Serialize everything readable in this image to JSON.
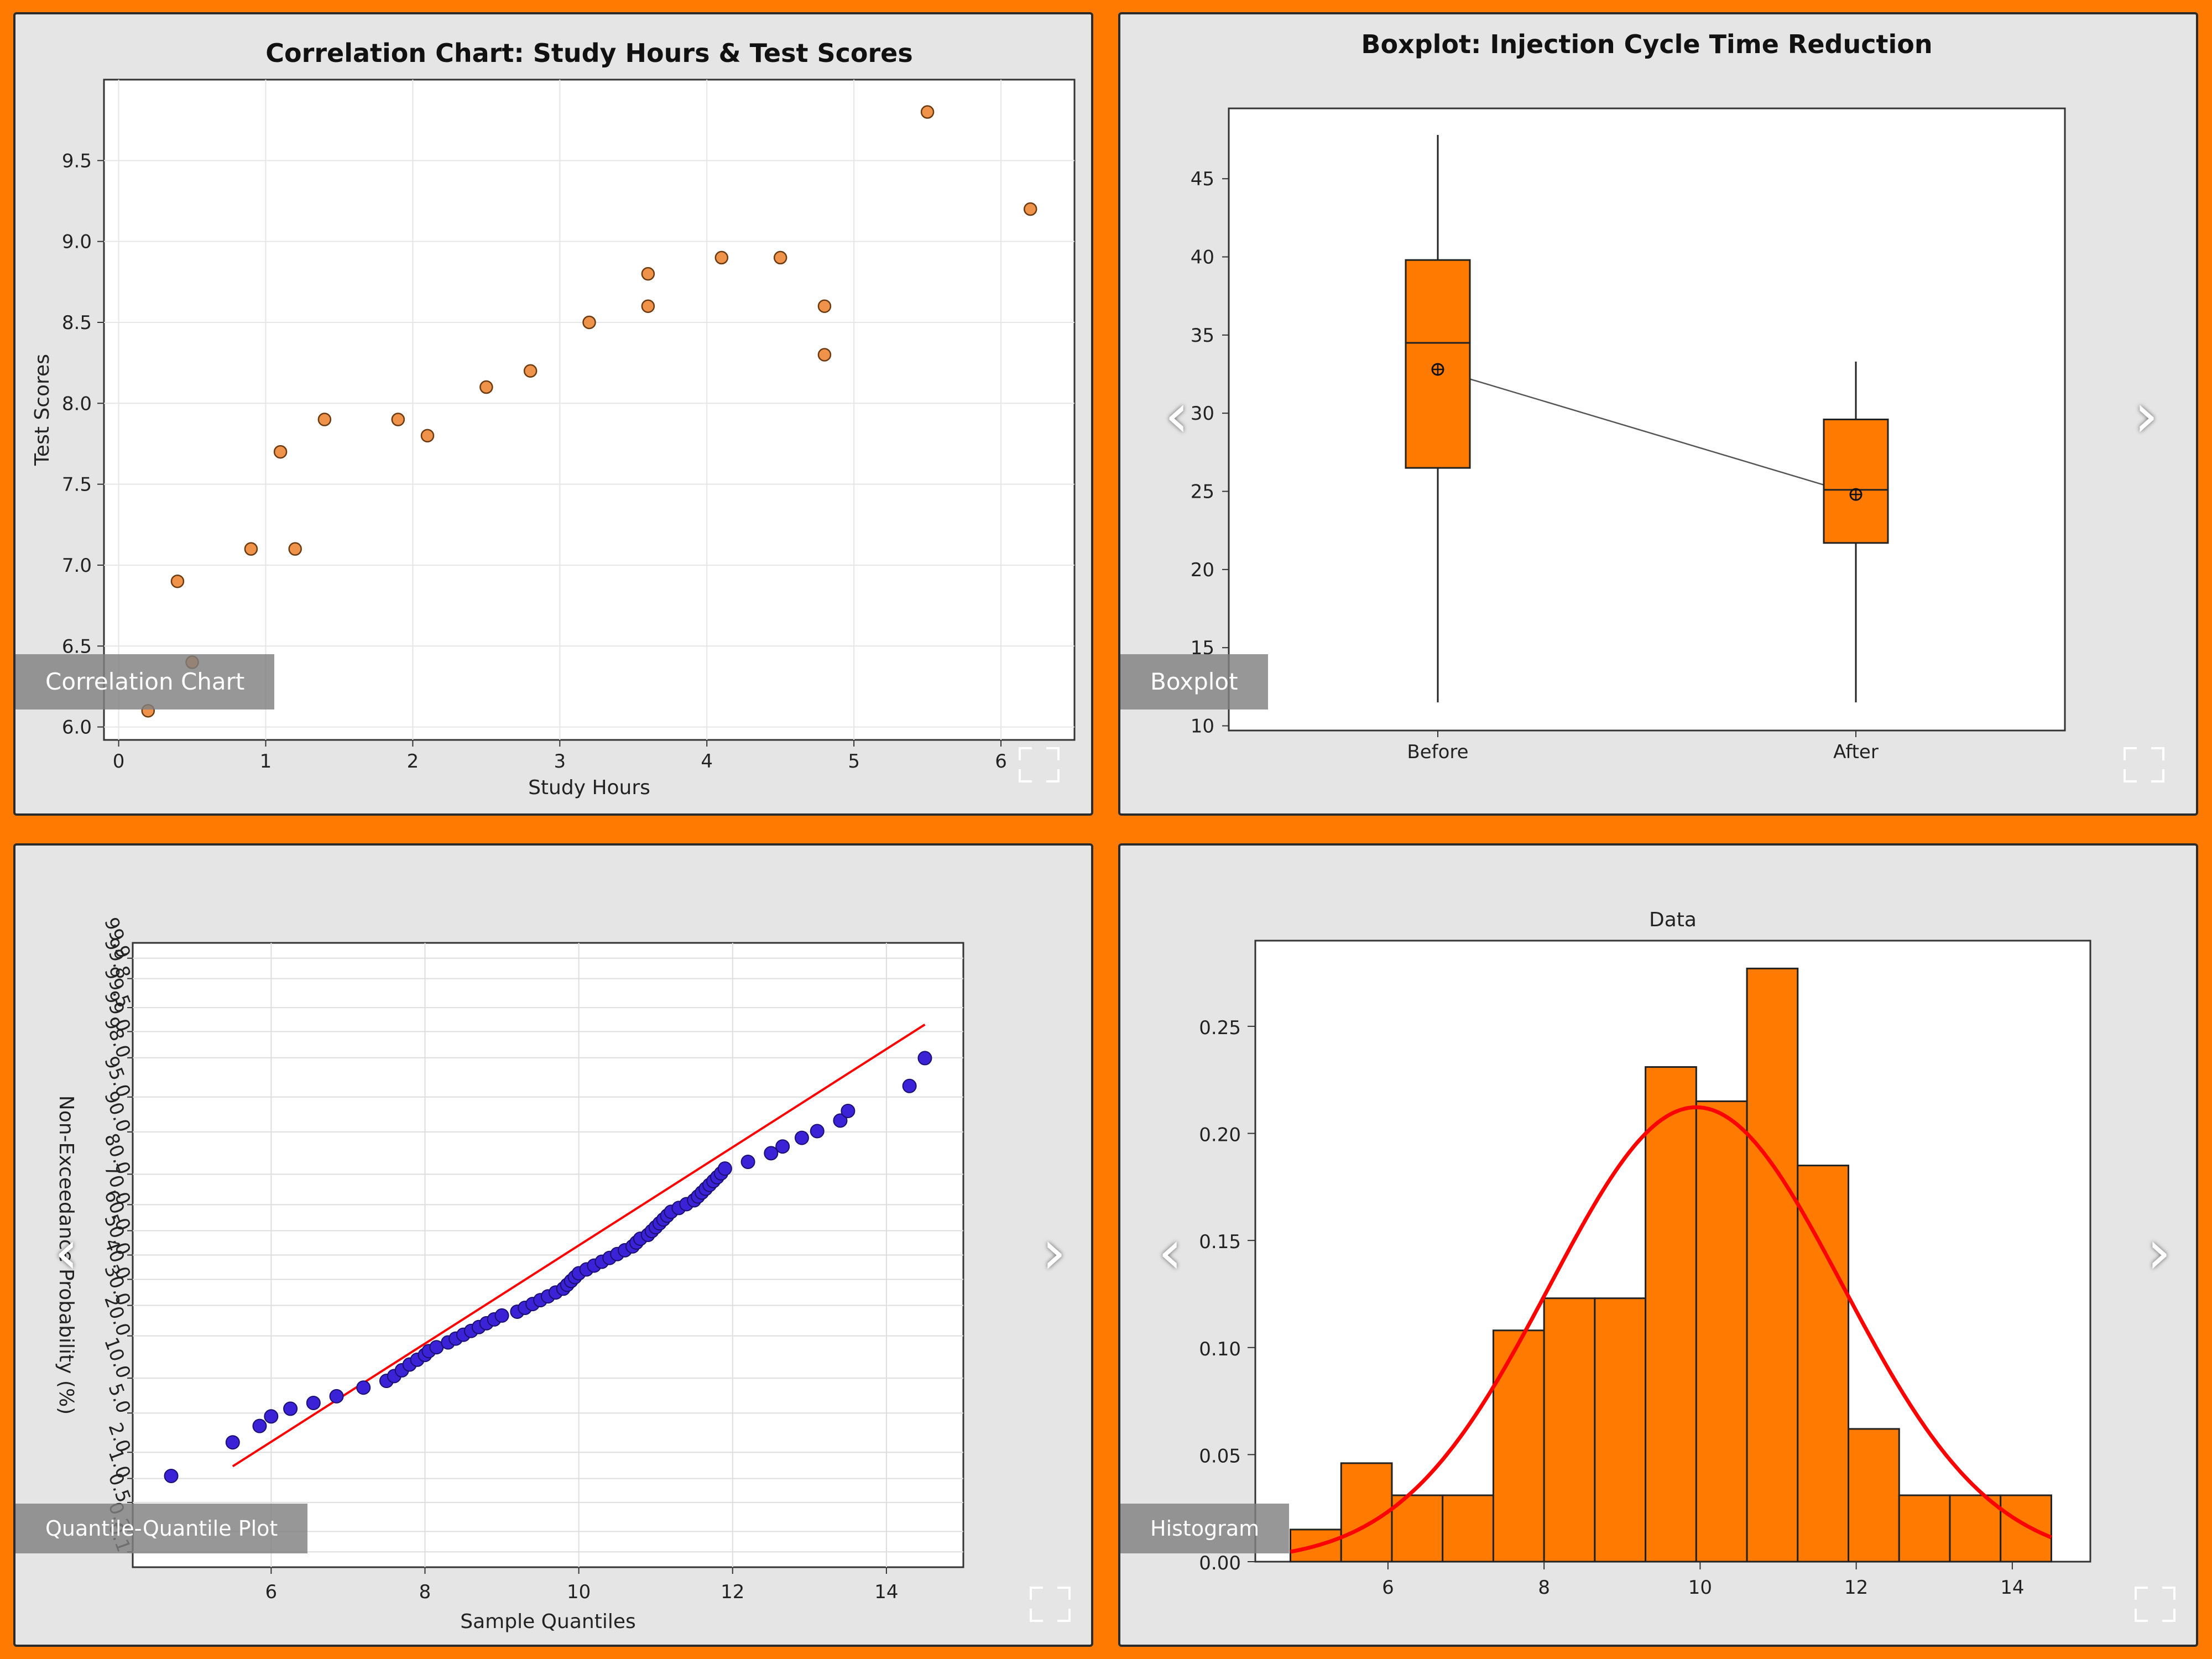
{
  "panels": [
    {
      "caption": "Correlation Chart",
      "chart_data": {
        "type": "scatter",
        "title": "Correlation Chart: Study Hours & Test Scores",
        "xlabel": "Study Hours",
        "ylabel": "Test Scores",
        "xlim": [
          -0.1,
          6.5
        ],
        "ylim": [
          5.92,
          10.0
        ],
        "xticks": [
          0,
          1,
          2,
          3,
          4,
          5,
          6
        ],
        "yticks": [
          6.0,
          6.5,
          7.0,
          7.5,
          8.0,
          8.5,
          9.0,
          9.5
        ],
        "ytick_labels": [
          "6.0",
          "6.5",
          "7.0",
          "7.5",
          "8.0",
          "8.5",
          "9.0",
          "9.5"
        ],
        "grid": true,
        "color": "#F0934A",
        "points": [
          [
            0.2,
            6.1
          ],
          [
            0.4,
            6.9
          ],
          [
            0.5,
            6.4
          ],
          [
            0.9,
            7.1
          ],
          [
            1.1,
            7.7
          ],
          [
            1.2,
            7.1
          ],
          [
            1.4,
            7.9
          ],
          [
            1.9,
            7.9
          ],
          [
            2.1,
            7.8
          ],
          [
            2.5,
            8.1
          ],
          [
            2.8,
            8.2
          ],
          [
            3.2,
            8.5
          ],
          [
            3.6,
            8.8
          ],
          [
            3.6,
            8.6
          ],
          [
            4.1,
            8.9
          ],
          [
            4.5,
            8.9
          ],
          [
            4.8,
            8.6
          ],
          [
            4.8,
            8.3
          ],
          [
            5.5,
            9.8
          ],
          [
            6.2,
            9.2
          ]
        ]
      }
    },
    {
      "caption": "Boxplot",
      "chart_data": {
        "type": "box",
        "title": "Boxplot: Injection Cycle Time Reduction",
        "categories": [
          "Before",
          "After"
        ],
        "ylim": [
          9.7,
          49.5
        ],
        "yticks": [
          10,
          15,
          20,
          25,
          30,
          35,
          40,
          45
        ],
        "color": "#FF7A00",
        "boxes": [
          {
            "min": 11.5,
            "q1": 26.5,
            "median": 34.5,
            "q3": 39.8,
            "max": 47.8,
            "mean": 32.8
          },
          {
            "min": 11.5,
            "q1": 21.7,
            "median": 25.1,
            "q3": 29.6,
            "max": 33.3,
            "mean": 24.8
          }
        ]
      }
    },
    {
      "caption": "Quantile-Quantile Plot",
      "chart_data": {
        "type": "scatter",
        "xlabel": "Sample Quantiles",
        "ylabel": "Non-Exceedance Probability (%)",
        "xlim": [
          4.2,
          15.0
        ],
        "xticks": [
          6,
          8,
          10,
          12,
          14
        ],
        "yticks": [
          0.1,
          0.2,
          0.5,
          1.0,
          2.0,
          5.0,
          10.0,
          20.0,
          30.0,
          40.0,
          50.0,
          60.0,
          70.0,
          80.0,
          90.0,
          95.0,
          98.0,
          99.0,
          99.5,
          99.8,
          99.9
        ],
        "ytick_labels": [
          "0.1",
          "0.2",
          "0.5",
          "1.0",
          "2.0",
          "5.0",
          "10.0",
          "20.0",
          "30.0",
          "40.0",
          "50.0",
          "60.0",
          "70.0",
          "80.0",
          "90.0",
          "95.0",
          "98.0",
          "99.0",
          "99.5",
          "99.8",
          "99.9"
        ],
        "zlim": [
          -3.25,
          3.25
        ],
        "grid": true,
        "point_color": "#3B22D6",
        "line_color": "#FF0000",
        "fit_line": {
          "x": [
            5.5,
            14.5
          ],
          "z": [
            -2.2,
            2.4
          ]
        },
        "points_xz": [
          [
            4.7,
            -2.3
          ],
          [
            5.5,
            -1.95
          ],
          [
            5.85,
            -1.78
          ],
          [
            6.0,
            -1.68
          ],
          [
            6.25,
            -1.6
          ],
          [
            6.55,
            -1.54
          ],
          [
            6.85,
            -1.47
          ],
          [
            7.2,
            -1.38
          ],
          [
            7.5,
            -1.31
          ],
          [
            7.6,
            -1.26
          ],
          [
            7.7,
            -1.2
          ],
          [
            7.8,
            -1.14
          ],
          [
            7.9,
            -1.09
          ],
          [
            8.0,
            -1.04
          ],
          [
            8.05,
            -1.0
          ],
          [
            8.15,
            -0.96
          ],
          [
            8.3,
            -0.91
          ],
          [
            8.4,
            -0.87
          ],
          [
            8.5,
            -0.83
          ],
          [
            8.6,
            -0.79
          ],
          [
            8.7,
            -0.75
          ],
          [
            8.8,
            -0.71
          ],
          [
            8.9,
            -0.67
          ],
          [
            9.0,
            -0.63
          ],
          [
            9.2,
            -0.59
          ],
          [
            9.3,
            -0.55
          ],
          [
            9.4,
            -0.51
          ],
          [
            9.5,
            -0.47
          ],
          [
            9.6,
            -0.43
          ],
          [
            9.7,
            -0.39
          ],
          [
            9.8,
            -0.35
          ],
          [
            9.85,
            -0.31
          ],
          [
            9.9,
            -0.27
          ],
          [
            9.95,
            -0.23
          ],
          [
            10.0,
            -0.19
          ],
          [
            10.1,
            -0.15
          ],
          [
            10.2,
            -0.11
          ],
          [
            10.3,
            -0.07
          ],
          [
            10.4,
            -0.03
          ],
          [
            10.5,
            0.01
          ],
          [
            10.6,
            0.05
          ],
          [
            10.7,
            0.09
          ],
          [
            10.75,
            0.13
          ],
          [
            10.8,
            0.17
          ],
          [
            10.9,
            0.21
          ],
          [
            10.95,
            0.25
          ],
          [
            11.0,
            0.29
          ],
          [
            11.05,
            0.33
          ],
          [
            11.1,
            0.37
          ],
          [
            11.15,
            0.41
          ],
          [
            11.2,
            0.45
          ],
          [
            11.3,
            0.49
          ],
          [
            11.4,
            0.53
          ],
          [
            11.5,
            0.57
          ],
          [
            11.55,
            0.61
          ],
          [
            11.6,
            0.65
          ],
          [
            11.65,
            0.69
          ],
          [
            11.7,
            0.73
          ],
          [
            11.75,
            0.77
          ],
          [
            11.8,
            0.81
          ],
          [
            11.85,
            0.85
          ],
          [
            11.9,
            0.9
          ],
          [
            12.2,
            0.97
          ],
          [
            12.5,
            1.06
          ],
          [
            12.65,
            1.13
          ],
          [
            12.9,
            1.22
          ],
          [
            13.1,
            1.29
          ],
          [
            13.4,
            1.4
          ],
          [
            13.5,
            1.5
          ],
          [
            14.3,
            1.76
          ],
          [
            14.5,
            2.05
          ]
        ]
      }
    },
    {
      "caption": "Histogram",
      "chart_data": {
        "type": "bar",
        "title": "Data",
        "xlim": [
          4.3,
          15.0
        ],
        "ylim": [
          0.0,
          0.29
        ],
        "xticks": [
          6,
          8,
          10,
          12,
          14
        ],
        "yticks": [
          0.0,
          0.05,
          0.1,
          0.15,
          0.2,
          0.25
        ],
        "ytick_labels": [
          "0.00",
          "0.05",
          "0.10",
          "0.15",
          "0.20",
          "0.25"
        ],
        "color": "#FF7A00",
        "curve_color": "#FF0000",
        "bin_edges": [
          4.75,
          5.4,
          6.05,
          6.7,
          7.35,
          8.0,
          8.65,
          9.3,
          9.95,
          10.6,
          11.25,
          11.9,
          12.55,
          13.2,
          13.85,
          14.5
        ],
        "densities": [
          0.015,
          0.046,
          0.031,
          0.031,
          0.108,
          0.123,
          0.123,
          0.231,
          0.215,
          0.277,
          0.185,
          0.062,
          0.031,
          0.031,
          0.031
        ],
        "normal_fit": {
          "mean": 9.95,
          "std": 1.88
        }
      }
    }
  ]
}
